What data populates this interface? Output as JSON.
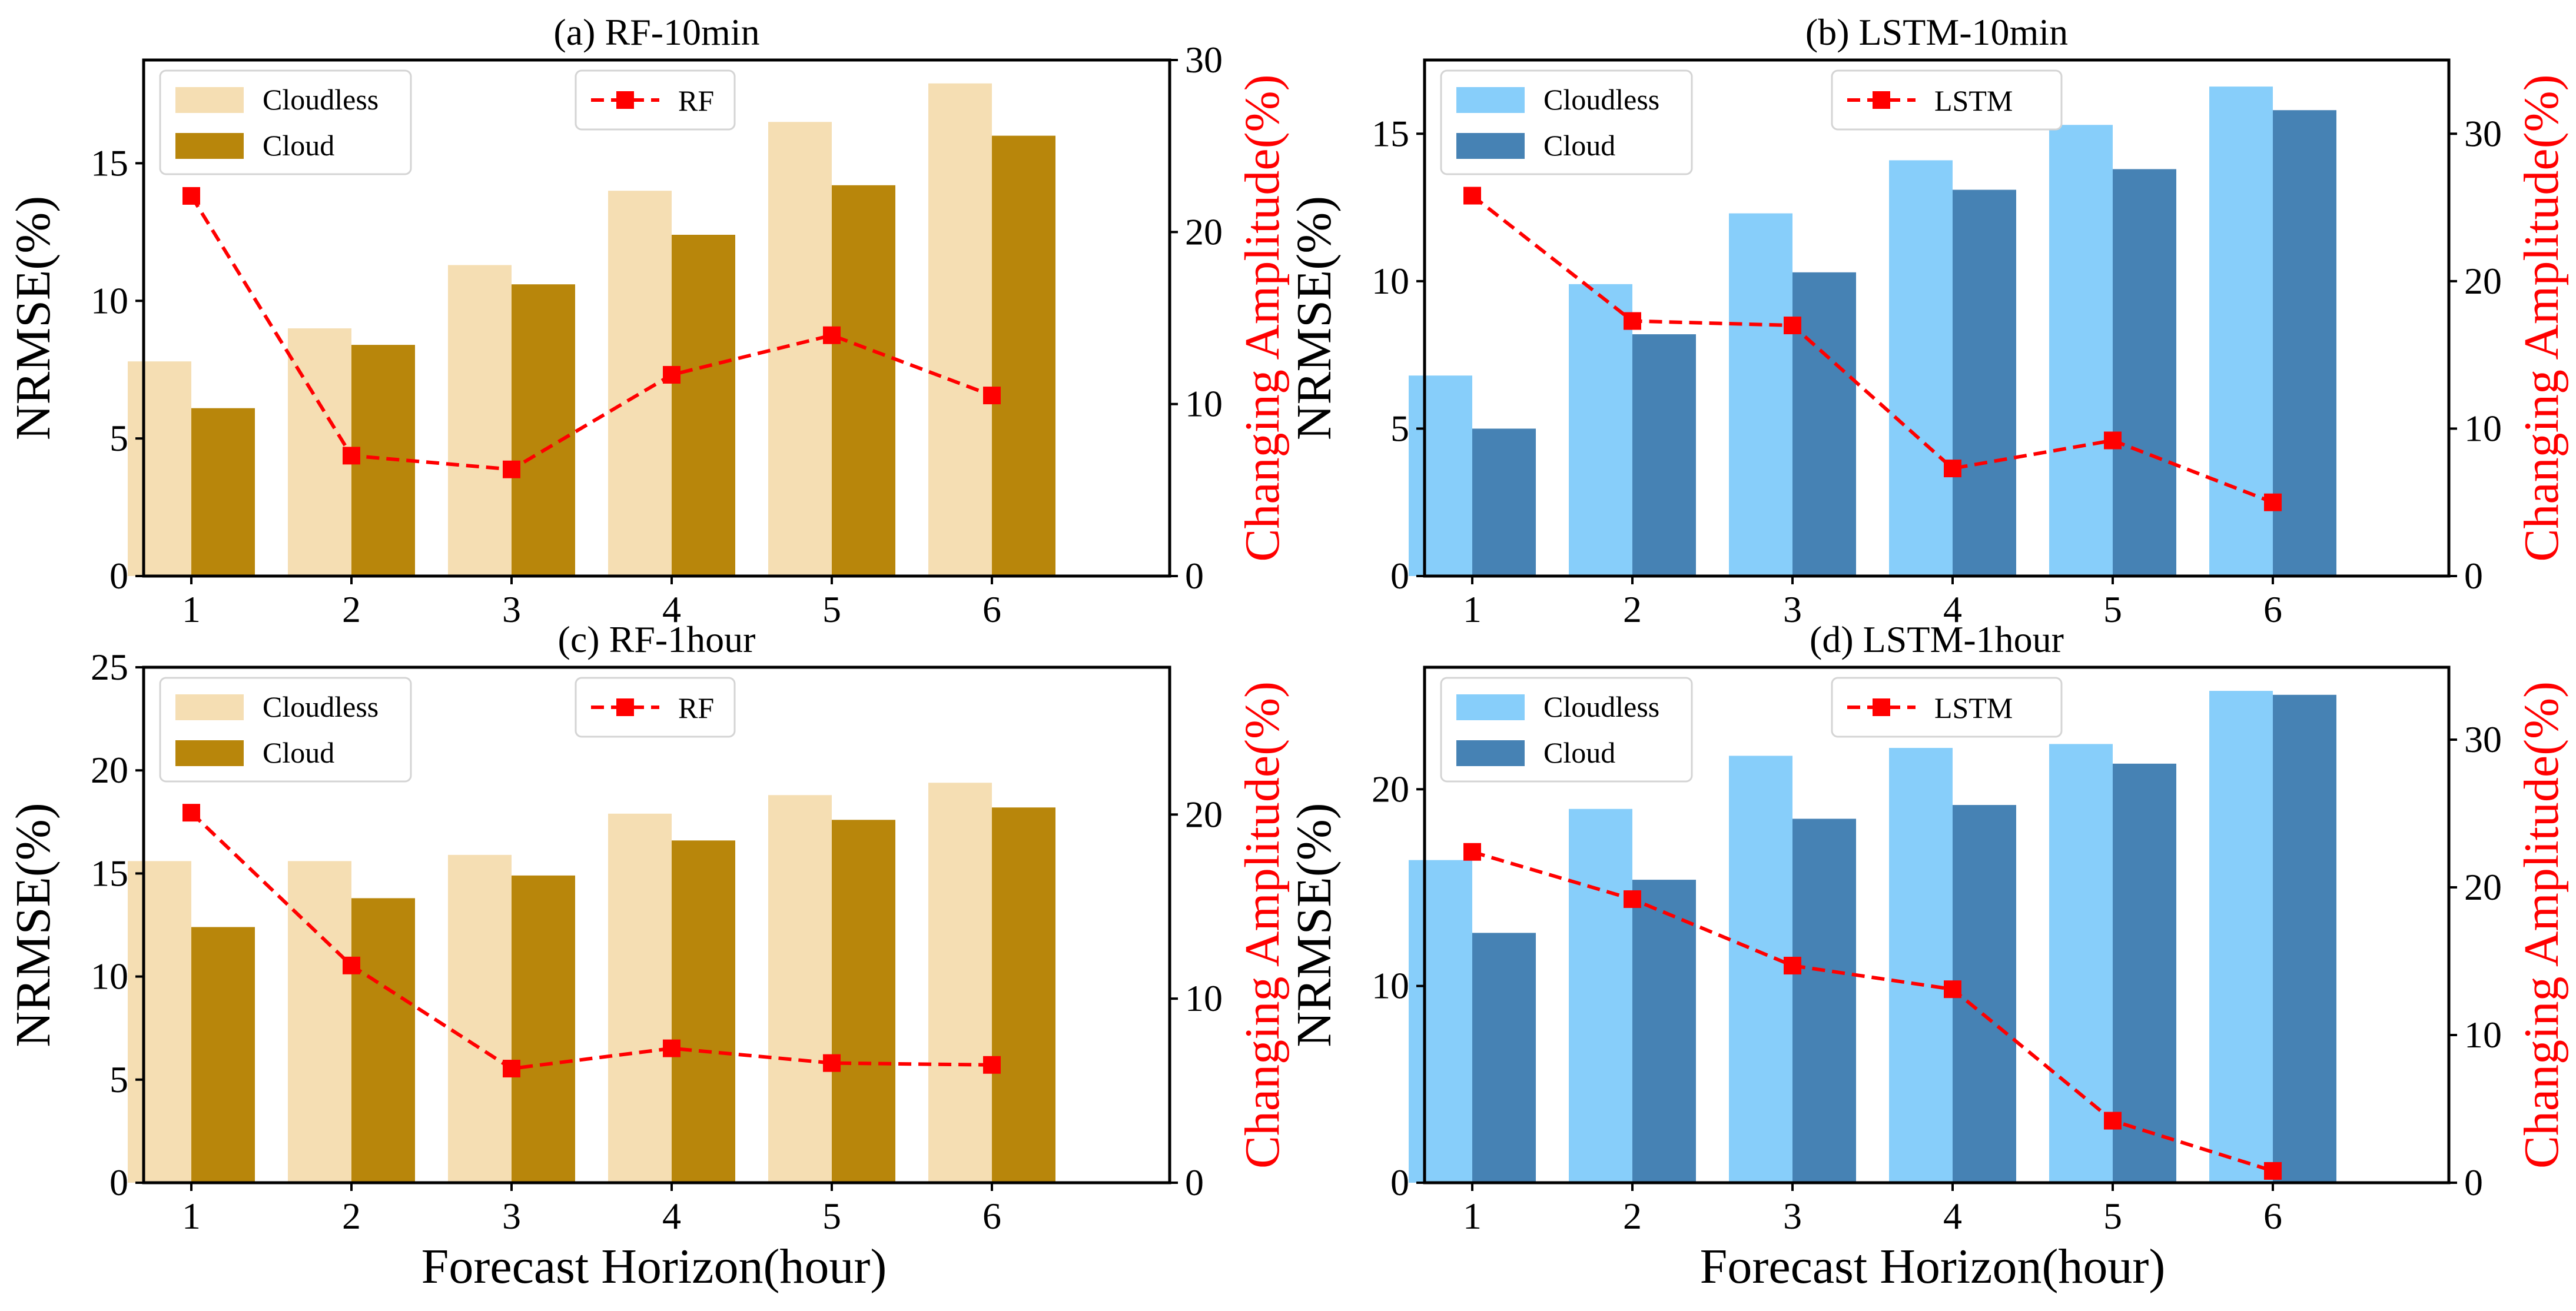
{
  "xlabel": "Forecast Horizon(hour)",
  "chart_data": [
    {
      "type": "bar",
      "title": "(a) RF-10min",
      "categories": [
        "1",
        "2",
        "3",
        "4",
        "5",
        "6"
      ],
      "series": [
        {
          "name": "Cloudless",
          "values": [
            7.8,
            9.0,
            11.3,
            14.0,
            16.5,
            17.9
          ],
          "color": "#f5deb3"
        },
        {
          "name": "Cloud",
          "values": [
            6.1,
            8.4,
            10.6,
            12.4,
            14.2,
            16.0
          ],
          "color": "#b8860b"
        }
      ],
      "line": {
        "name": "RF",
        "values": [
          22.1,
          7.0,
          6.2,
          11.7,
          14.0,
          10.5
        ],
        "color": "#ff0000"
      },
      "ylabel": "NRMSE(%)",
      "ylabel_right": "Changing Amplitude(%)",
      "ylim": [
        0,
        18.75
      ],
      "ylim_right": [
        0,
        30
      ],
      "yticks": [
        0,
        5,
        10,
        15
      ],
      "yticks_right": [
        0,
        10,
        20,
        30
      ]
    },
    {
      "type": "bar",
      "title": "(b) LSTM-10min",
      "categories": [
        "1",
        "2",
        "3",
        "4",
        "5",
        "6"
      ],
      "series": [
        {
          "name": "Cloudless",
          "values": [
            6.8,
            9.9,
            12.3,
            14.1,
            15.3,
            16.6
          ],
          "color": "#87cefa"
        },
        {
          "name": "Cloud",
          "values": [
            5.0,
            8.2,
            10.3,
            13.1,
            13.8,
            15.8
          ],
          "color": "#4682b4"
        }
      ],
      "line": {
        "name": "LSTM",
        "values": [
          25.8,
          17.3,
          17.0,
          7.3,
          9.2,
          5.0
        ],
        "color": "#ff0000"
      },
      "ylabel": "NRMSE(%)",
      "ylabel_right": "Changing Amplitude(%)",
      "ylim": [
        0,
        17.5
      ],
      "ylim_right": [
        0,
        35
      ],
      "yticks": [
        0,
        5,
        10,
        15
      ],
      "yticks_right": [
        0,
        10,
        20,
        30
      ]
    },
    {
      "type": "bar",
      "title": "(c) RF-1hour",
      "categories": [
        "1",
        "2",
        "3",
        "4",
        "5",
        "6"
      ],
      "series": [
        {
          "name": "Cloudless",
          "values": [
            15.6,
            15.6,
            15.9,
            17.9,
            18.8,
            19.4
          ],
          "color": "#f5deb3"
        },
        {
          "name": "Cloud",
          "values": [
            12.4,
            13.8,
            14.9,
            16.6,
            17.6,
            18.2
          ],
          "color": "#b8860b"
        }
      ],
      "line": {
        "name": "RF",
        "values": [
          20.1,
          11.8,
          6.2,
          7.3,
          6.5,
          6.4
        ],
        "color": "#ff0000"
      },
      "ylabel": "NRMSE(%)",
      "ylabel_right": "Changing Amplitude(%)",
      "ylim": [
        0,
        25
      ],
      "ylim_right": [
        0,
        28
      ],
      "yticks": [
        0,
        5,
        10,
        15,
        20,
        25
      ],
      "yticks_right": [
        0,
        10,
        20
      ]
    },
    {
      "type": "bar",
      "title": "(d) LSTM-1hour",
      "categories": [
        "1",
        "2",
        "3",
        "4",
        "5",
        "6"
      ],
      "series": [
        {
          "name": "Cloudless",
          "values": [
            16.4,
            19.0,
            21.7,
            22.1,
            22.3,
            25.0
          ],
          "color": "#87cefa"
        },
        {
          "name": "Cloud",
          "values": [
            12.7,
            15.4,
            18.5,
            19.2,
            21.3,
            24.8
          ],
          "color": "#4682b4"
        }
      ],
      "line": {
        "name": "LSTM",
        "values": [
          22.4,
          19.2,
          14.7,
          13.1,
          4.2,
          0.8
        ],
        "color": "#ff0000"
      },
      "ylabel": "NRMSE(%)",
      "ylabel_right": "Changing Amplitude(%)",
      "ylim": [
        0,
        26.2
      ],
      "ylim_right": [
        0,
        34.9
      ],
      "yticks": [
        0,
        10,
        20
      ],
      "yticks_right": [
        0,
        10,
        20,
        30
      ]
    }
  ]
}
